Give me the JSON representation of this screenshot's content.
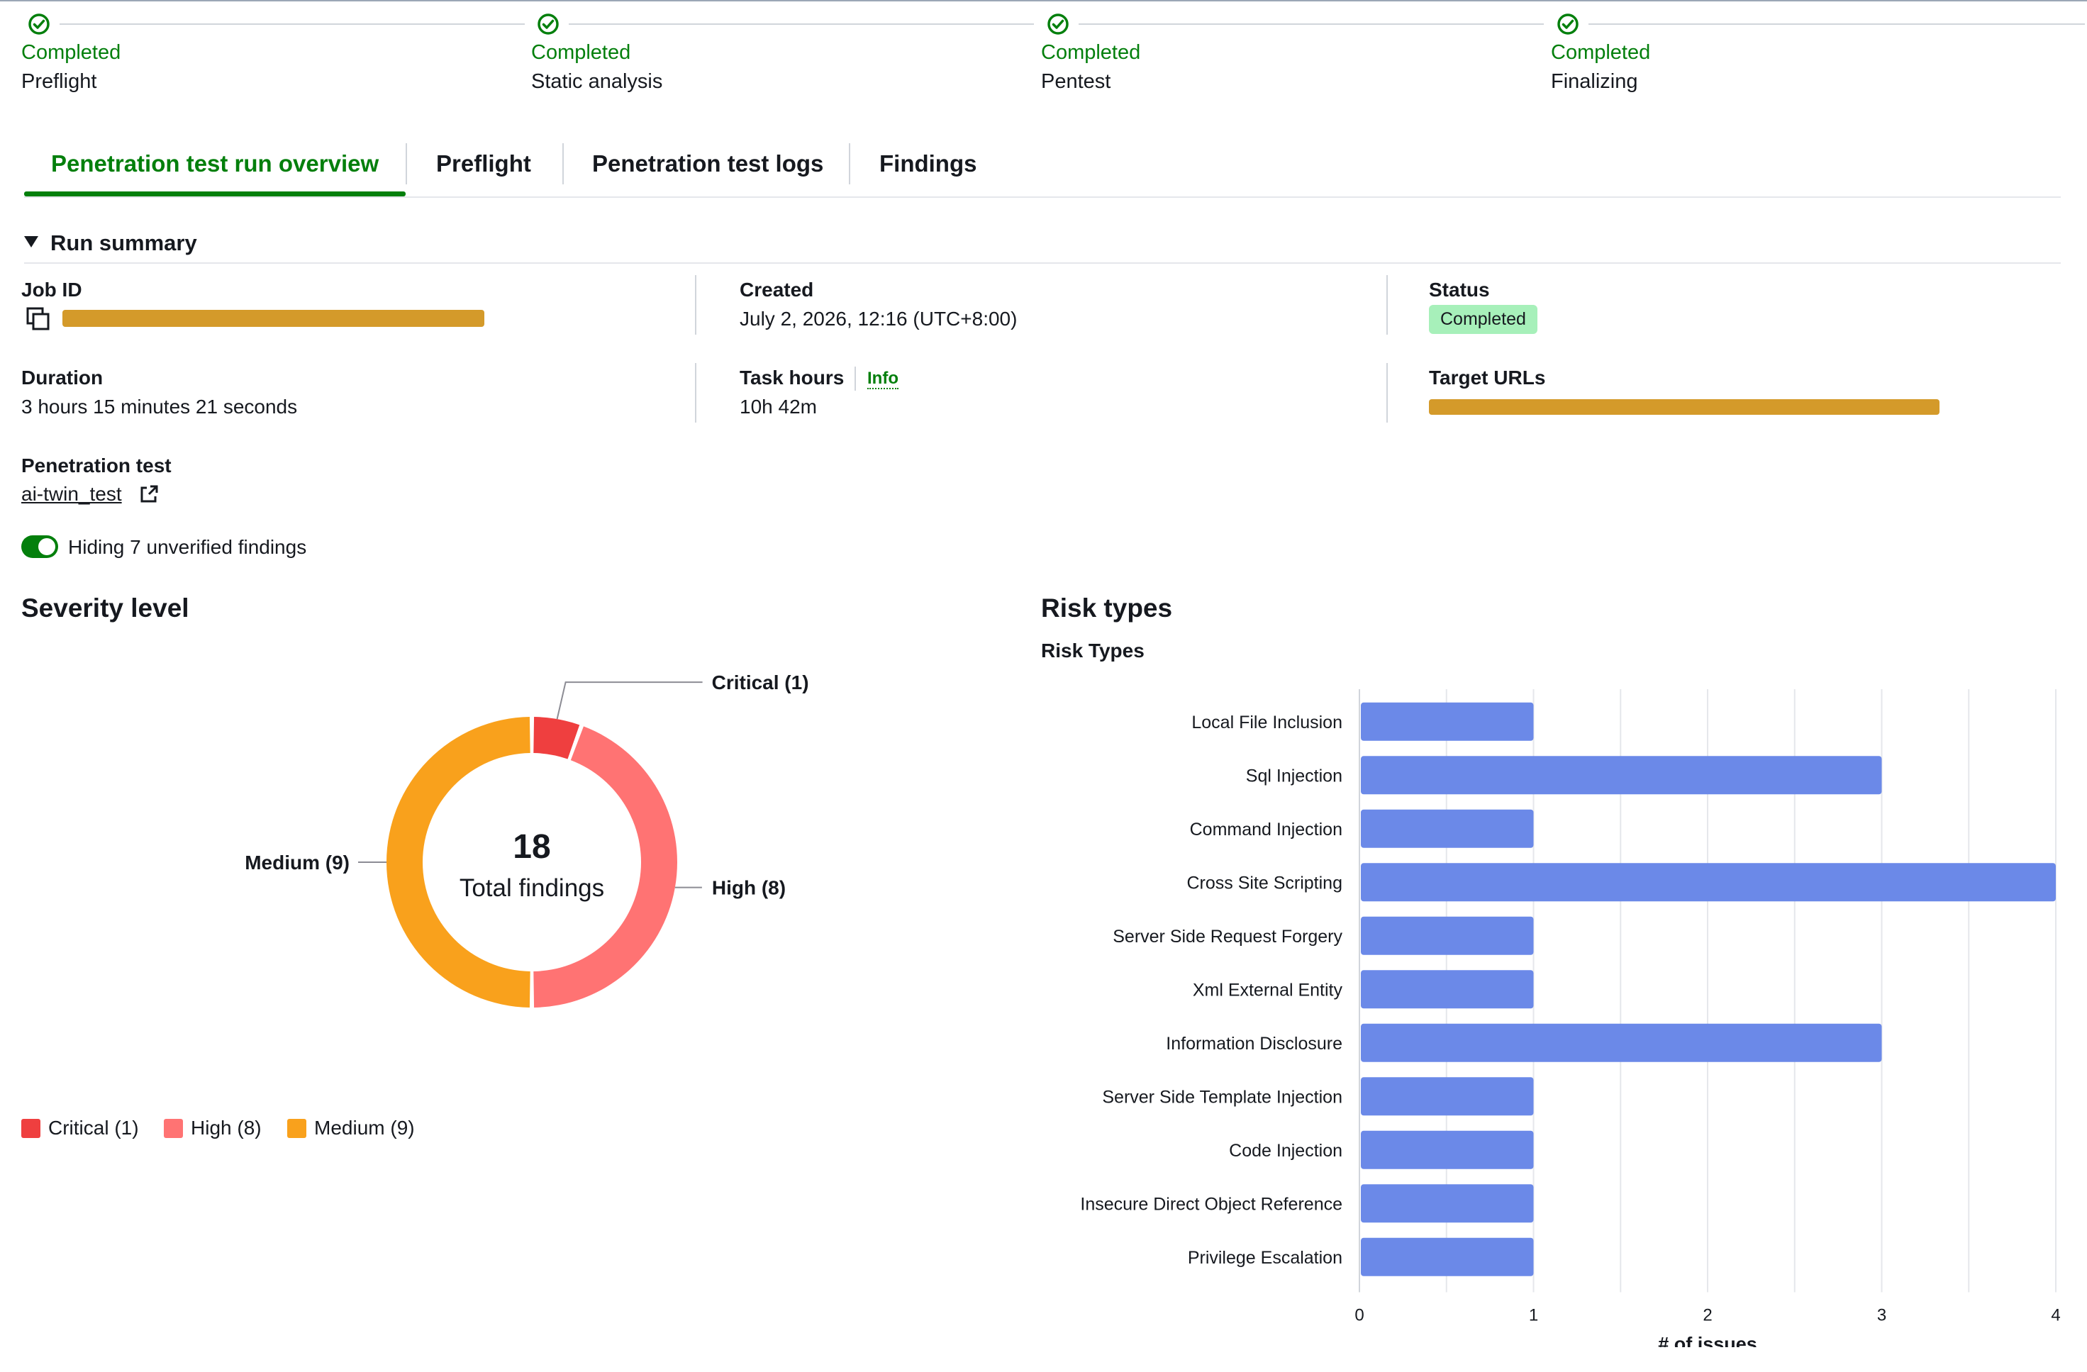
{
  "steps": [
    {
      "status": "Completed",
      "name": "Preflight"
    },
    {
      "status": "Completed",
      "name": "Static analysis"
    },
    {
      "status": "Completed",
      "name": "Pentest"
    },
    {
      "status": "Completed",
      "name": "Finalizing"
    }
  ],
  "tabs": [
    "Penetration test run overview",
    "Preflight",
    "Penetration test logs",
    "Findings"
  ],
  "run_summary": {
    "heading": "Run summary",
    "job_id_label": "Job ID",
    "created_label": "Created",
    "created_value": "July 2, 2026, 12:16 (UTC+8:00)",
    "status_label": "Status",
    "status_value": "Completed",
    "duration_label": "Duration",
    "duration_value": "3 hours 15 minutes 21 seconds",
    "task_hours_label": "Task hours",
    "info_link": "Info",
    "task_hours_value": "10h 42m",
    "target_urls_label": "Target URLs",
    "pentest_label": "Penetration test",
    "pentest_link": "ai-twin_test",
    "toggle_label": "Hiding 7 unverified findings",
    "toggle_on": true
  },
  "severity": {
    "heading": "Severity level",
    "total": "18",
    "total_label": "Total findings",
    "legend": [
      "Critical (1)",
      "High (8)",
      "Medium (9)"
    ]
  },
  "risk": {
    "heading": "Risk types",
    "subheading": "Risk Types"
  },
  "colors": {
    "critical": "#ef3f3f",
    "high": "#ff7373",
    "medium": "#f9a11c",
    "bar": "#6b89e8",
    "green": "#037f0c"
  },
  "chart_data": [
    {
      "type": "pie",
      "categories": [
        "Critical",
        "High",
        "Medium"
      ],
      "values": [
        1,
        8,
        9
      ],
      "labels": [
        "Critical (1)",
        "High (8)",
        "Medium (9)"
      ],
      "center_value": "18",
      "center_label": "Total findings",
      "legend": "bottom-left"
    },
    {
      "type": "bar",
      "orientation": "horizontal",
      "title": "Risk Types",
      "categories": [
        "Local File Inclusion",
        "Sql Injection",
        "Command Injection",
        "Cross Site Scripting",
        "Server Side Request Forgery",
        "Xml External Entity",
        "Information Disclosure",
        "Server Side Template Injection",
        "Code Injection",
        "Insecure Direct Object Reference",
        "Privilege Escalation"
      ],
      "values": [
        1,
        3,
        1,
        4,
        1,
        1,
        3,
        1,
        1,
        1,
        1
      ],
      "xlabel": "# of issues",
      "xlim": [
        0,
        4
      ],
      "xticks": [
        "0",
        "1",
        "2",
        "3",
        "4"
      ],
      "grid": true
    }
  ]
}
